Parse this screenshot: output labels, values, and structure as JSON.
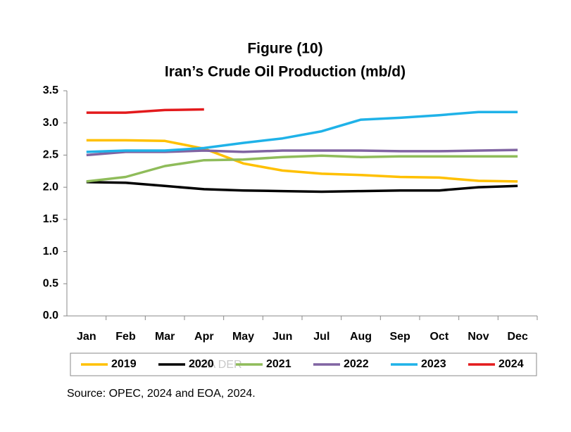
{
  "chart_data": {
    "type": "line",
    "title": "Figure (10)",
    "subtitle": "Iran’s Crude Oil Production (mb/d)",
    "categories": [
      "Jan",
      "Feb",
      "Mar",
      "Apr",
      "May",
      "Jun",
      "Jul",
      "Aug",
      "Sep",
      "Oct",
      "Nov",
      "Dec"
    ],
    "series": [
      {
        "name": "2019",
        "color": "#ffc000",
        "values": [
          2.73,
          2.73,
          2.72,
          2.6,
          2.37,
          2.26,
          2.21,
          2.19,
          2.16,
          2.15,
          2.1,
          2.09
        ]
      },
      {
        "name": "2020",
        "color": "#000000",
        "values": [
          2.08,
          2.07,
          2.02,
          1.97,
          1.95,
          1.94,
          1.93,
          1.94,
          1.95,
          1.95,
          2.0,
          2.02
        ]
      },
      {
        "name": "2021",
        "color": "#8fbc5a",
        "values": [
          2.09,
          2.16,
          2.33,
          2.42,
          2.43,
          2.47,
          2.49,
          2.47,
          2.48,
          2.48,
          2.48,
          2.48
        ]
      },
      {
        "name": "2022",
        "color": "#8064a2",
        "values": [
          2.5,
          2.55,
          2.55,
          2.57,
          2.55,
          2.57,
          2.57,
          2.57,
          2.56,
          2.56,
          2.57,
          2.58
        ]
      },
      {
        "name": "2023",
        "color": "#1fb2e8",
        "values": [
          2.55,
          2.57,
          2.57,
          2.61,
          2.69,
          2.76,
          2.87,
          3.05,
          3.08,
          3.12,
          3.17,
          3.17
        ]
      },
      {
        "name": "2024",
        "color": "#e31a1c",
        "values": [
          3.16,
          3.16,
          3.2,
          3.21,
          null,
          null,
          null,
          null,
          null,
          null,
          null,
          null
        ]
      }
    ],
    "ylim": [
      0,
      3.5
    ],
    "yticks": [
      {
        "value": 0,
        "label": "0.0"
      },
      0.5,
      {
        "value": 1,
        "label": "1.0"
      },
      1.5,
      {
        "value": 2,
        "label": "2.0"
      },
      2.5,
      {
        "value": 3,
        "label": "3.0"
      },
      3.5
    ],
    "grid": false,
    "legend": "bottom",
    "watermark": "EOA DER",
    "source": "Source: OPEC, 2024 and EOA, 2024."
  }
}
